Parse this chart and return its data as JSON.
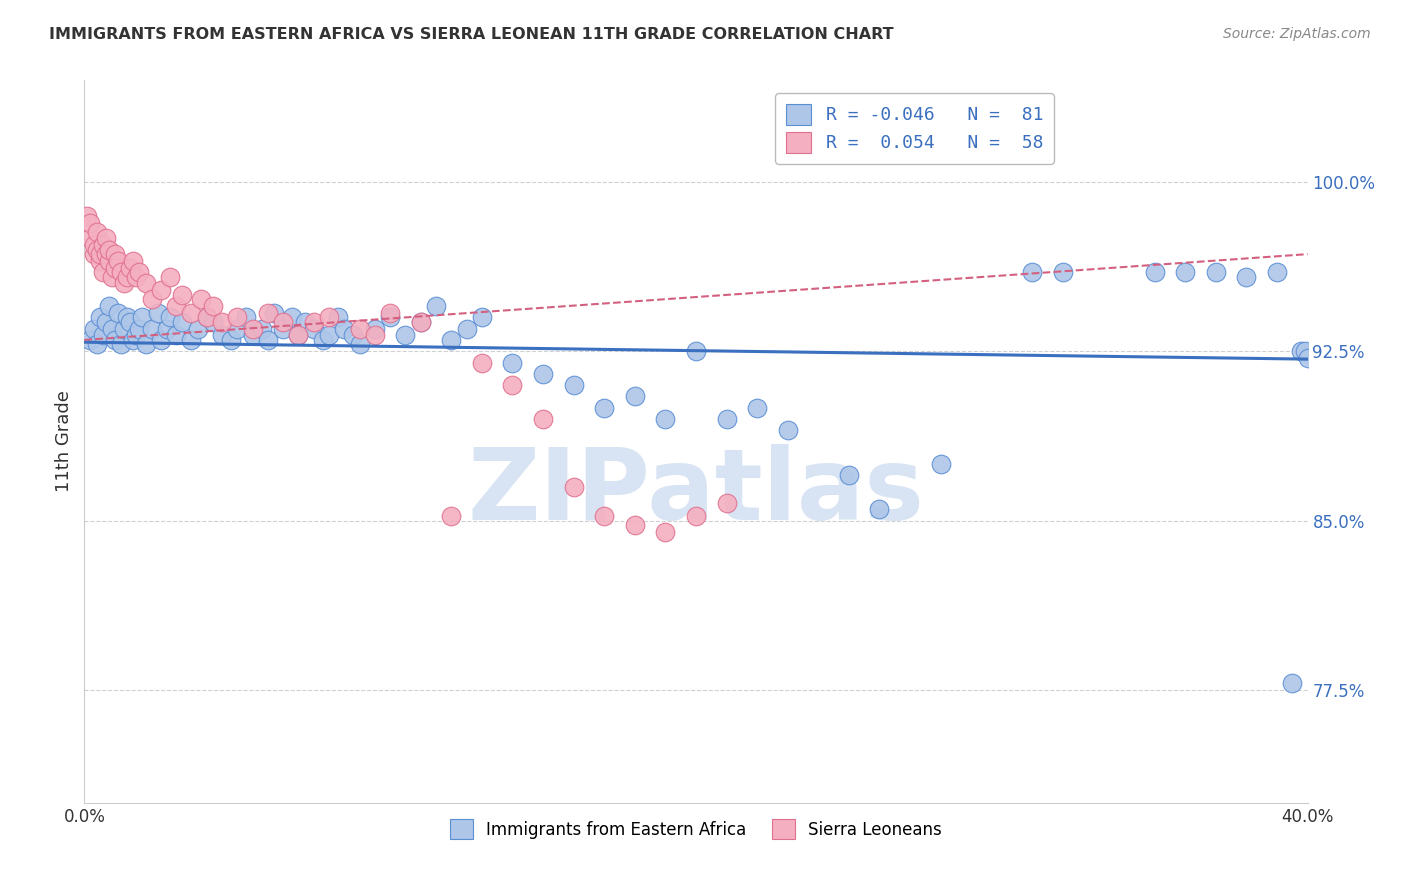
{
  "title": "IMMIGRANTS FROM EASTERN AFRICA VS SIERRA LEONEAN 11TH GRADE CORRELATION CHART",
  "source": "Source: ZipAtlas.com",
  "ylabel": "11th Grade",
  "ytick_vals": [
    0.775,
    0.85,
    0.925,
    1.0
  ],
  "ytick_labels": [
    "77.5%",
    "85.0%",
    "92.5%",
    "100.0%"
  ],
  "xlim": [
    0.0,
    0.4
  ],
  "ylim": [
    0.725,
    1.045
  ],
  "xtick_vals": [
    0.0,
    0.4
  ],
  "xtick_labels": [
    "0.0%",
    "40.0%"
  ],
  "blue_scatter_x": [
    0.002,
    0.003,
    0.004,
    0.005,
    0.006,
    0.007,
    0.008,
    0.009,
    0.01,
    0.011,
    0.012,
    0.013,
    0.014,
    0.015,
    0.016,
    0.017,
    0.018,
    0.019,
    0.02,
    0.022,
    0.024,
    0.025,
    0.027,
    0.028,
    0.03,
    0.032,
    0.035,
    0.037,
    0.04,
    0.042,
    0.045,
    0.048,
    0.05,
    0.053,
    0.055,
    0.058,
    0.06,
    0.062,
    0.065,
    0.068,
    0.07,
    0.072,
    0.075,
    0.078,
    0.08,
    0.083,
    0.085,
    0.088,
    0.09,
    0.095,
    0.1,
    0.105,
    0.11,
    0.115,
    0.12,
    0.125,
    0.13,
    0.14,
    0.15,
    0.16,
    0.17,
    0.18,
    0.19,
    0.2,
    0.21,
    0.22,
    0.23,
    0.25,
    0.26,
    0.28,
    0.31,
    0.32,
    0.35,
    0.36,
    0.37,
    0.38,
    0.39,
    0.395,
    0.398,
    0.399,
    0.4
  ],
  "blue_scatter_y": [
    0.93,
    0.935,
    0.928,
    0.94,
    0.932,
    0.938,
    0.945,
    0.935,
    0.93,
    0.942,
    0.928,
    0.935,
    0.94,
    0.938,
    0.93,
    0.932,
    0.935,
    0.94,
    0.928,
    0.935,
    0.942,
    0.93,
    0.935,
    0.94,
    0.932,
    0.938,
    0.93,
    0.935,
    0.94,
    0.938,
    0.932,
    0.93,
    0.935,
    0.94,
    0.932,
    0.935,
    0.93,
    0.942,
    0.935,
    0.94,
    0.932,
    0.938,
    0.935,
    0.93,
    0.932,
    0.94,
    0.935,
    0.932,
    0.928,
    0.935,
    0.94,
    0.932,
    0.938,
    0.945,
    0.93,
    0.935,
    0.94,
    0.92,
    0.915,
    0.91,
    0.9,
    0.905,
    0.895,
    0.925,
    0.895,
    0.9,
    0.89,
    0.87,
    0.855,
    0.875,
    0.96,
    0.96,
    0.96,
    0.96,
    0.96,
    0.958,
    0.96,
    0.778,
    0.925,
    0.925,
    0.922
  ],
  "pink_scatter_x": [
    0.001,
    0.002,
    0.002,
    0.003,
    0.003,
    0.004,
    0.004,
    0.005,
    0.005,
    0.006,
    0.006,
    0.007,
    0.007,
    0.008,
    0.008,
    0.009,
    0.01,
    0.01,
    0.011,
    0.012,
    0.013,
    0.014,
    0.015,
    0.016,
    0.017,
    0.018,
    0.02,
    0.022,
    0.025,
    0.028,
    0.03,
    0.032,
    0.035,
    0.038,
    0.04,
    0.042,
    0.045,
    0.05,
    0.055,
    0.06,
    0.065,
    0.07,
    0.075,
    0.08,
    0.09,
    0.095,
    0.1,
    0.11,
    0.12,
    0.13,
    0.14,
    0.15,
    0.16,
    0.17,
    0.18,
    0.19,
    0.2,
    0.21
  ],
  "pink_scatter_y": [
    0.985,
    0.975,
    0.982,
    0.968,
    0.972,
    0.978,
    0.97,
    0.965,
    0.968,
    0.972,
    0.96,
    0.975,
    0.968,
    0.965,
    0.97,
    0.958,
    0.968,
    0.962,
    0.965,
    0.96,
    0.955,
    0.958,
    0.962,
    0.965,
    0.958,
    0.96,
    0.955,
    0.948,
    0.952,
    0.958,
    0.945,
    0.95,
    0.942,
    0.948,
    0.94,
    0.945,
    0.938,
    0.94,
    0.935,
    0.942,
    0.938,
    0.932,
    0.938,
    0.94,
    0.935,
    0.932,
    0.942,
    0.938,
    0.852,
    0.92,
    0.91,
    0.895,
    0.865,
    0.852,
    0.848,
    0.845,
    0.852,
    0.858
  ],
  "blue_line_x": [
    0.0,
    0.4
  ],
  "blue_line_y": [
    0.929,
    0.9215
  ],
  "pink_line_x": [
    0.0,
    0.4
  ],
  "pink_line_y": [
    0.93,
    0.968
  ],
  "blue_color": "#3B6FBF",
  "pink_color": "#d46080",
  "blue_scatter_facecolor": "#aec6e8",
  "blue_scatter_edgecolor": "#5b8fd4",
  "pink_scatter_facecolor": "#f4afc0",
  "pink_scatter_edgecolor": "#e07090",
  "watermark_color": "#c8d8ee",
  "legend_r_blue": "R = -0.046",
  "legend_n_blue": "N =  81",
  "legend_r_pink": "R =  0.054",
  "legend_n_pink": "N =  58",
  "legend_label_blue": "Immigrants from Eastern Africa",
  "legend_label_pink": "Sierra Leoneans",
  "background_color": "#ffffff",
  "grid_color": "#d0d0d0",
  "tick_label_color": "#3B6FBF",
  "title_color": "#333333",
  "source_color": "#888888",
  "ylabel_color": "#333333"
}
